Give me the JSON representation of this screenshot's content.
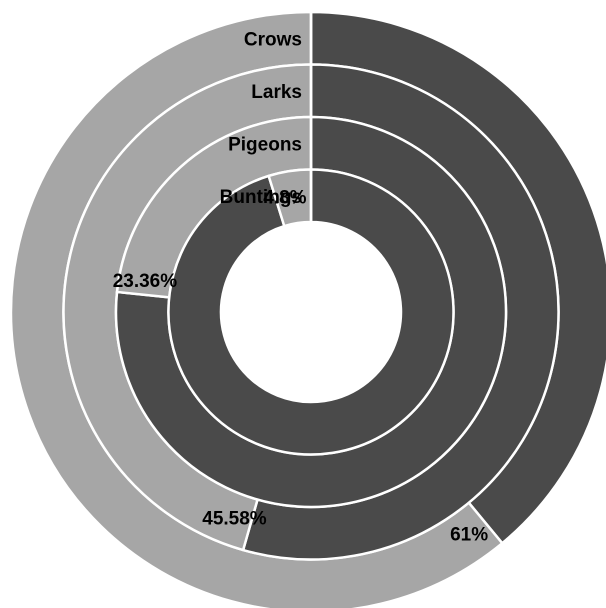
{
  "chart_data": {
    "type": "radial-bar",
    "categories": [
      "Crows",
      "Larks",
      "Pigeons",
      "Buntings"
    ],
    "values": [
      61,
      45.58,
      23.36,
      4.8
    ],
    "value_labels": [
      "61%",
      "45.58%",
      "23.36%",
      "4.8%"
    ],
    "max": 100,
    "colors": {
      "filled": "#a6a6a6",
      "remainder": "#4a4a4a",
      "separator": "#ffffff",
      "background": "#ffffff"
    }
  }
}
